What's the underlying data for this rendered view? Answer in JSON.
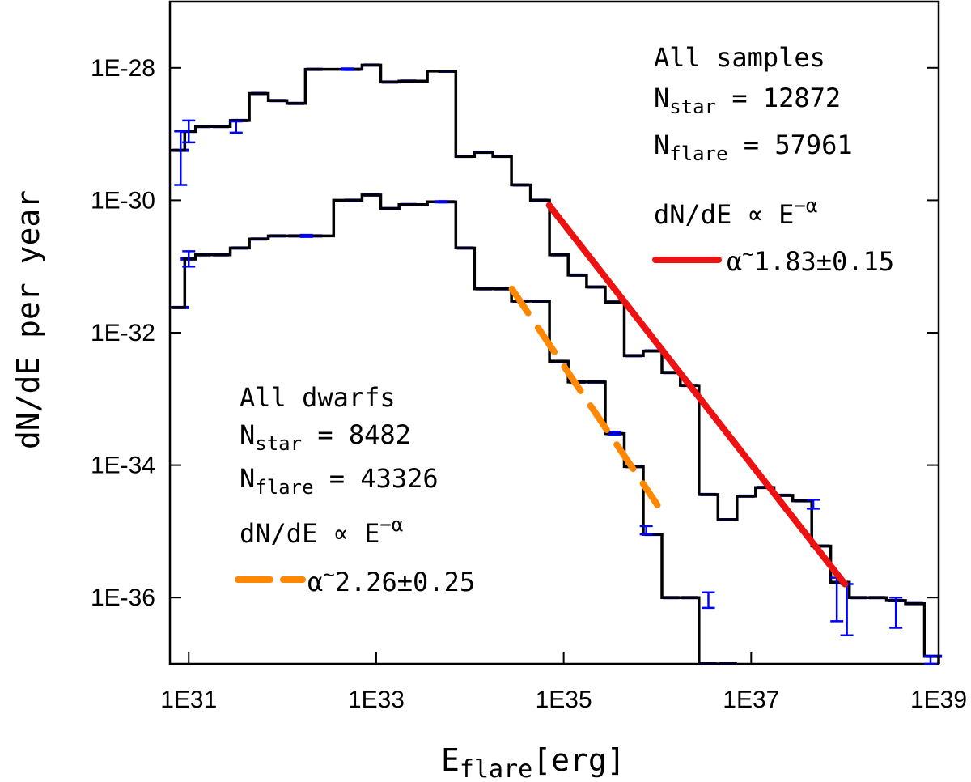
{
  "chart_data": {
    "type": "line",
    "subtype": "step-histogram",
    "xlabel": {
      "main": "E",
      "sub": "flare",
      "unit": "[erg]"
    },
    "ylabel": "dN/dE per year",
    "xscale": "log",
    "yscale": "log",
    "xlim": [
      6.3e+30,
      1e+39
    ],
    "ylim": [
      1e-37,
      1e-27
    ],
    "x_ticks": [
      {
        "value": 1e+31,
        "label": "1E31"
      },
      {
        "value": 1e+33,
        "label": "1E33"
      },
      {
        "value": 1e+35,
        "label": "1E35"
      },
      {
        "value": 1e+37,
        "label": "1E37"
      },
      {
        "value": 1e+39,
        "label": "1E39"
      }
    ],
    "y_ticks": [
      {
        "value": 1e-28,
        "label": "1E-28"
      },
      {
        "value": 1e-30,
        "label": "1E-30"
      },
      {
        "value": 1e-32,
        "label": "1E-32"
      },
      {
        "value": 1e-34,
        "label": "1E-34"
      },
      {
        "value": 1e-36,
        "label": "1E-36"
      }
    ],
    "series": [
      {
        "name": "All samples",
        "color": "#000000",
        "errorbar_color": "#0000ff",
        "x": [
          8.2e+30,
          1e+31,
          1.4e+31,
          2.2e+31,
          3.5e+31,
          5.6e+31,
          8.9e+31,
          1.4e+32,
          2.2e+32,
          5.6e+32,
          8.9e+32,
          1.4e+33,
          2.2e+33,
          5.6e+33,
          8.9e+33,
          1.4e+34,
          2.2e+34,
          3.5e+34,
          5.6e+34,
          8.9e+34,
          1.4e+35,
          2.2e+35,
          3.5e+35,
          5.6e+35,
          8.9e+35,
          1.4e+36,
          2.2e+36,
          3.5e+36,
          5.6e+36,
          8.9e+36,
          1.4e+37,
          2.2e+37,
          3.5e+37,
          5.6e+37,
          8.9e+37,
          1.4e+38,
          2.2e+38,
          3.5e+38,
          5.6e+38,
          8.9e+38
        ],
        "values": [
          5.7e-30,
          1.1e-29,
          1.3e-29,
          1.3e-29,
          1.6e-29,
          4.1e-29,
          3.2e-29,
          2.9e-29,
          9.5e-29,
          9.5e-29,
          1.1e-28,
          6.1e-29,
          6.3e-29,
          8.9e-29,
          4.6e-30,
          5.3e-30,
          4.6e-30,
          1.7e-30,
          1e-30,
          1.5e-31,
          7.4e-32,
          4.9e-32,
          2.9e-32,
          4.5e-33,
          5.3e-33,
          2.5e-33,
          1.6e-33,
          3.6e-35,
          1.5e-35,
          3.4e-35,
          4.6e-35,
          3.5e-35,
          2.9e-35,
          6e-36,
          1.7e-36,
          1e-36,
          1e-36,
          9e-37,
          8.1e-37,
          1.3e-37
        ],
        "errorbars": [
          {
            "x": 8.2e+30,
            "low": 1.7e-30,
            "high": 1.1e-29
          },
          {
            "x": 1e+31,
            "low": 7.5e-30,
            "high": 1.6e-29
          },
          {
            "x": 3.2e+31,
            "low": 1.05e-29,
            "high": 1.55e-29
          },
          {
            "x": 4.9e+32,
            "low": 9.3e-29,
            "high": 9.8e-29
          },
          {
            "x": 4.6e+37,
            "low": 2.2e-35,
            "high": 3e-35
          },
          {
            "x": 8.2e+37,
            "low": 4.4e-37,
            "high": 2e-36
          },
          {
            "x": 1.05e+38,
            "low": 2.7e-37,
            "high": 1.6e-36
          },
          {
            "x": 3.5e+38,
            "low": 3.5e-37,
            "high": 1e-36
          },
          {
            "x": 8.2e+38,
            "low": 5.9e-38,
            "high": 1.3e-37
          }
        ]
      },
      {
        "name": "All dwarfs",
        "color": "#000000",
        "errorbar_color": "#0000ff",
        "x": [
          8.2e+30,
          1e+31,
          1.4e+31,
          2.2e+31,
          3.5e+31,
          5.6e+31,
          8.9e+31,
          1.4e+32,
          2.2e+32,
          5.6e+32,
          8.9e+32,
          1.4e+33,
          2.2e+33,
          5.6e+33,
          8.9e+33,
          1.4e+34,
          2.2e+34,
          3.5e+34,
          5.6e+34,
          8.9e+34,
          1.4e+35,
          2.2e+35,
          3.5e+35,
          5.6e+35,
          8.9e+35,
          1.4e+36,
          2.2e+36,
          3.5e+36,
          5.6e+36
        ],
        "values": [
          2.4e-32,
          1.3e-31,
          1.5e-31,
          1.5e-31,
          1.9e-31,
          2.6e-31,
          2.9e-31,
          2.9e-31,
          2.9e-31,
          1e-30,
          1.2e-30,
          7.5e-31,
          8.6e-31,
          9.5e-31,
          1.9e-31,
          4.6e-32,
          4.6e-32,
          3e-32,
          3e-32,
          3.7e-33,
          1.8e-33,
          1.8e-33,
          3e-34,
          9.5e-35,
          9e-36,
          1e-36,
          1e-36,
          1e-37,
          1e-37
        ],
        "errorbars": [
          {
            "x": 1e+31,
            "low": 1e-31,
            "high": 1.7e-31
          },
          {
            "x": 1.8e+32,
            "low": 2.8e-31,
            "high": 3e-31
          },
          {
            "x": 4.9e+33,
            "low": 9.3e-31,
            "high": 9.7e-31
          },
          {
            "x": 3.5e+35,
            "low": 2.9e-34,
            "high": 3.2e-34
          },
          {
            "x": 7.6e+35,
            "low": 9e-36,
            "high": 1.2e-35
          },
          {
            "x": 3.5e+36,
            "low": 7e-37,
            "high": 1.2e-36
          }
        ]
      }
    ],
    "fits": [
      {
        "name": "All samples fit",
        "style": "solid",
        "color": "#ee1111",
        "x": [
          7e+34,
          1e+38
        ],
        "y": [
          8.4e-31,
          1.6e-36
        ]
      },
      {
        "name": "All dwarfs fit",
        "style": "dashed",
        "color": "#ff8800",
        "x": [
          2.8e+34,
          1e+36
        ],
        "y": [
          4.6e-32,
          2.5e-35
        ]
      }
    ]
  },
  "annotations": {
    "samples": {
      "title": "All samples",
      "nstar_label": "N",
      "nstar_sub": "star",
      "nstar_value": " = 12872",
      "nflare_label": "N",
      "nflare_sub": "flare",
      "nflare_value": " = 57961",
      "law_text": "dN/dE ∝ E",
      "law_sup": "−α",
      "legend_text": "α",
      "legend_tilde": "~",
      "legend_value": "1.83±0.15"
    },
    "dwarfs": {
      "title": "All dwarfs",
      "nstar_label": "N",
      "nstar_sub": "star",
      "nstar_value": " = 8482",
      "nflare_label": "N",
      "nflare_sub": "flare",
      "nflare_value": " = 43326",
      "law_text": "dN/dE ∝ E",
      "law_sup": "−α",
      "legend_text": "α",
      "legend_tilde": "~",
      "legend_value": "2.26±0.25"
    }
  }
}
